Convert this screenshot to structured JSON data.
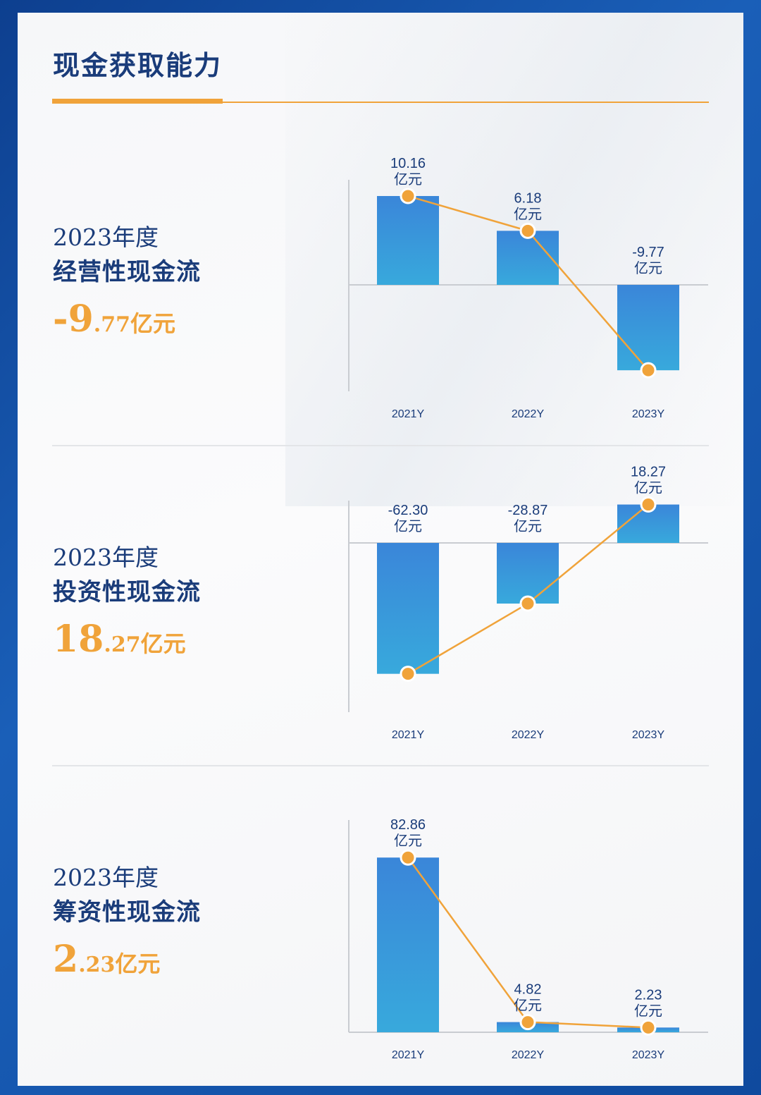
{
  "page": {
    "title": "现金获取能力"
  },
  "colors": {
    "navy": "#1a3c7a",
    "accent": "#f0a33a",
    "bar_top": "#3a86d9",
    "bar_bottom": "#37a8dc",
    "axis": "#c9ccd1"
  },
  "sections": [
    {
      "year": "2023年度",
      "name": "经营性现金流",
      "value": {
        "int": "-9",
        "dec": ".77",
        "unit": "亿元"
      }
    },
    {
      "year": "2023年度",
      "name": "投资性现金流",
      "value": {
        "int": "18",
        "dec": ".27",
        "unit": "亿元"
      }
    },
    {
      "year": "2023年度",
      "name": "筹资性现金流",
      "value": {
        "int": "2",
        "dec": ".23",
        "unit": "亿元"
      }
    }
  ],
  "chart_data": [
    {
      "type": "bar",
      "categories": [
        "2021Y",
        "2022Y",
        "2023Y"
      ],
      "values": [
        10.16,
        6.18,
        -9.77
      ],
      "data_labels": [
        "10.16",
        "6.18",
        "-9.77"
      ],
      "unit": "亿元",
      "overlay": "line",
      "grid": false
    },
    {
      "type": "bar",
      "categories": [
        "2021Y",
        "2022Y",
        "2023Y"
      ],
      "values": [
        -62.3,
        -28.87,
        18.27
      ],
      "data_labels": [
        "-62.30",
        "-28.87",
        "18.27"
      ],
      "unit": "亿元",
      "overlay": "line",
      "grid": false
    },
    {
      "type": "bar",
      "categories": [
        "2021Y",
        "2022Y",
        "2023Y"
      ],
      "values": [
        82.86,
        4.82,
        2.23
      ],
      "data_labels": [
        "82.86",
        "4.82",
        "2.23"
      ],
      "unit": "亿元",
      "overlay": "line",
      "grid": false
    }
  ]
}
